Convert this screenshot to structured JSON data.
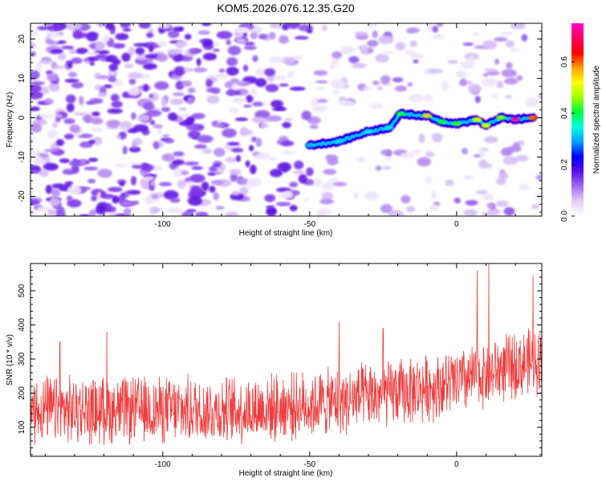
{
  "title": "KOM5.2026.076.12.35.G20",
  "colorbar": {
    "label": "Normalized spectral amplitude",
    "ticks": [
      "0.0",
      "0.2",
      "0.4",
      "0.6"
    ],
    "range": [
      0,
      0.75
    ],
    "colors": [
      "#ffffff",
      "#e4cff7",
      "#a36ff0",
      "#5a10e6",
      "#0000ff",
      "#00a0ff",
      "#00ffe0",
      "#00ff40",
      "#a0ff00",
      "#ffff00",
      "#ffa000",
      "#ff0000",
      "#ff0060",
      "#ff00c8"
    ]
  },
  "chart_data": [
    {
      "type": "heatmap",
      "xlabel": "Height of straight line (km)",
      "ylabel": "Frequency (Hz)",
      "xlim": [
        -145,
        29
      ],
      "ylim": [
        -25,
        24
      ],
      "xticks": [
        -100,
        -50,
        0
      ],
      "yticks": [
        -20,
        -10,
        0,
        10,
        20
      ],
      "xtick_labels": [
        "-100",
        "-50",
        "0"
      ],
      "ytick_labels": [
        "-20",
        "-10",
        "0",
        "10",
        "20"
      ],
      "signal_track": [
        {
          "x": -50,
          "y": -7,
          "value": 0.3
        },
        {
          "x": -40,
          "y": -6,
          "value": 0.32
        },
        {
          "x": -30,
          "y": -3.5,
          "value": 0.33
        },
        {
          "x": -23,
          "y": -2.5,
          "value": 0.33
        },
        {
          "x": -19,
          "y": 1,
          "value": 0.4
        },
        {
          "x": -10,
          "y": 0.5,
          "value": 0.55
        },
        {
          "x": -5,
          "y": -1,
          "value": 0.4
        },
        {
          "x": 0,
          "y": -1.5,
          "value": 0.42
        },
        {
          "x": 7,
          "y": -0.5,
          "value": 0.5
        },
        {
          "x": 10,
          "y": -2,
          "value": 0.5
        },
        {
          "x": 15,
          "y": 0,
          "value": 0.45
        },
        {
          "x": 20,
          "y": -0.5,
          "value": 0.72
        },
        {
          "x": 26,
          "y": 0,
          "value": 0.6
        }
      ],
      "noise_level_left": 0.12,
      "noise_level_right": 0.05
    },
    {
      "type": "line",
      "xlabel": "Height of straight line (km)",
      "ylabel": "SNR (10 * v/v)",
      "xlim": [
        -145,
        29
      ],
      "ylim": [
        15,
        580
      ],
      "xticks": [
        -100,
        -50,
        0
      ],
      "yticks": [
        100,
        200,
        300,
        400,
        500
      ],
      "xtick_labels": [
        "-100",
        "-50",
        "0"
      ],
      "ytick_labels": [
        "100",
        "200",
        "300",
        "400",
        "500"
      ],
      "series": [
        {
          "name": "SNR",
          "color": "#f03c3c",
          "trend": {
            "x": [
              -145,
              -75,
              -50,
              -25,
              0,
              15,
              29
            ],
            "y": [
              150,
              150,
              165,
              195,
              230,
              270,
              300
            ]
          },
          "peaks": {
            "x": [
              -135,
              -119,
              -40,
              -25,
              7,
              11,
              26
            ],
            "y": [
              350,
              380,
              410,
              390,
              560,
              585,
              545
            ]
          },
          "noise_amplitude": 110
        }
      ]
    }
  ]
}
